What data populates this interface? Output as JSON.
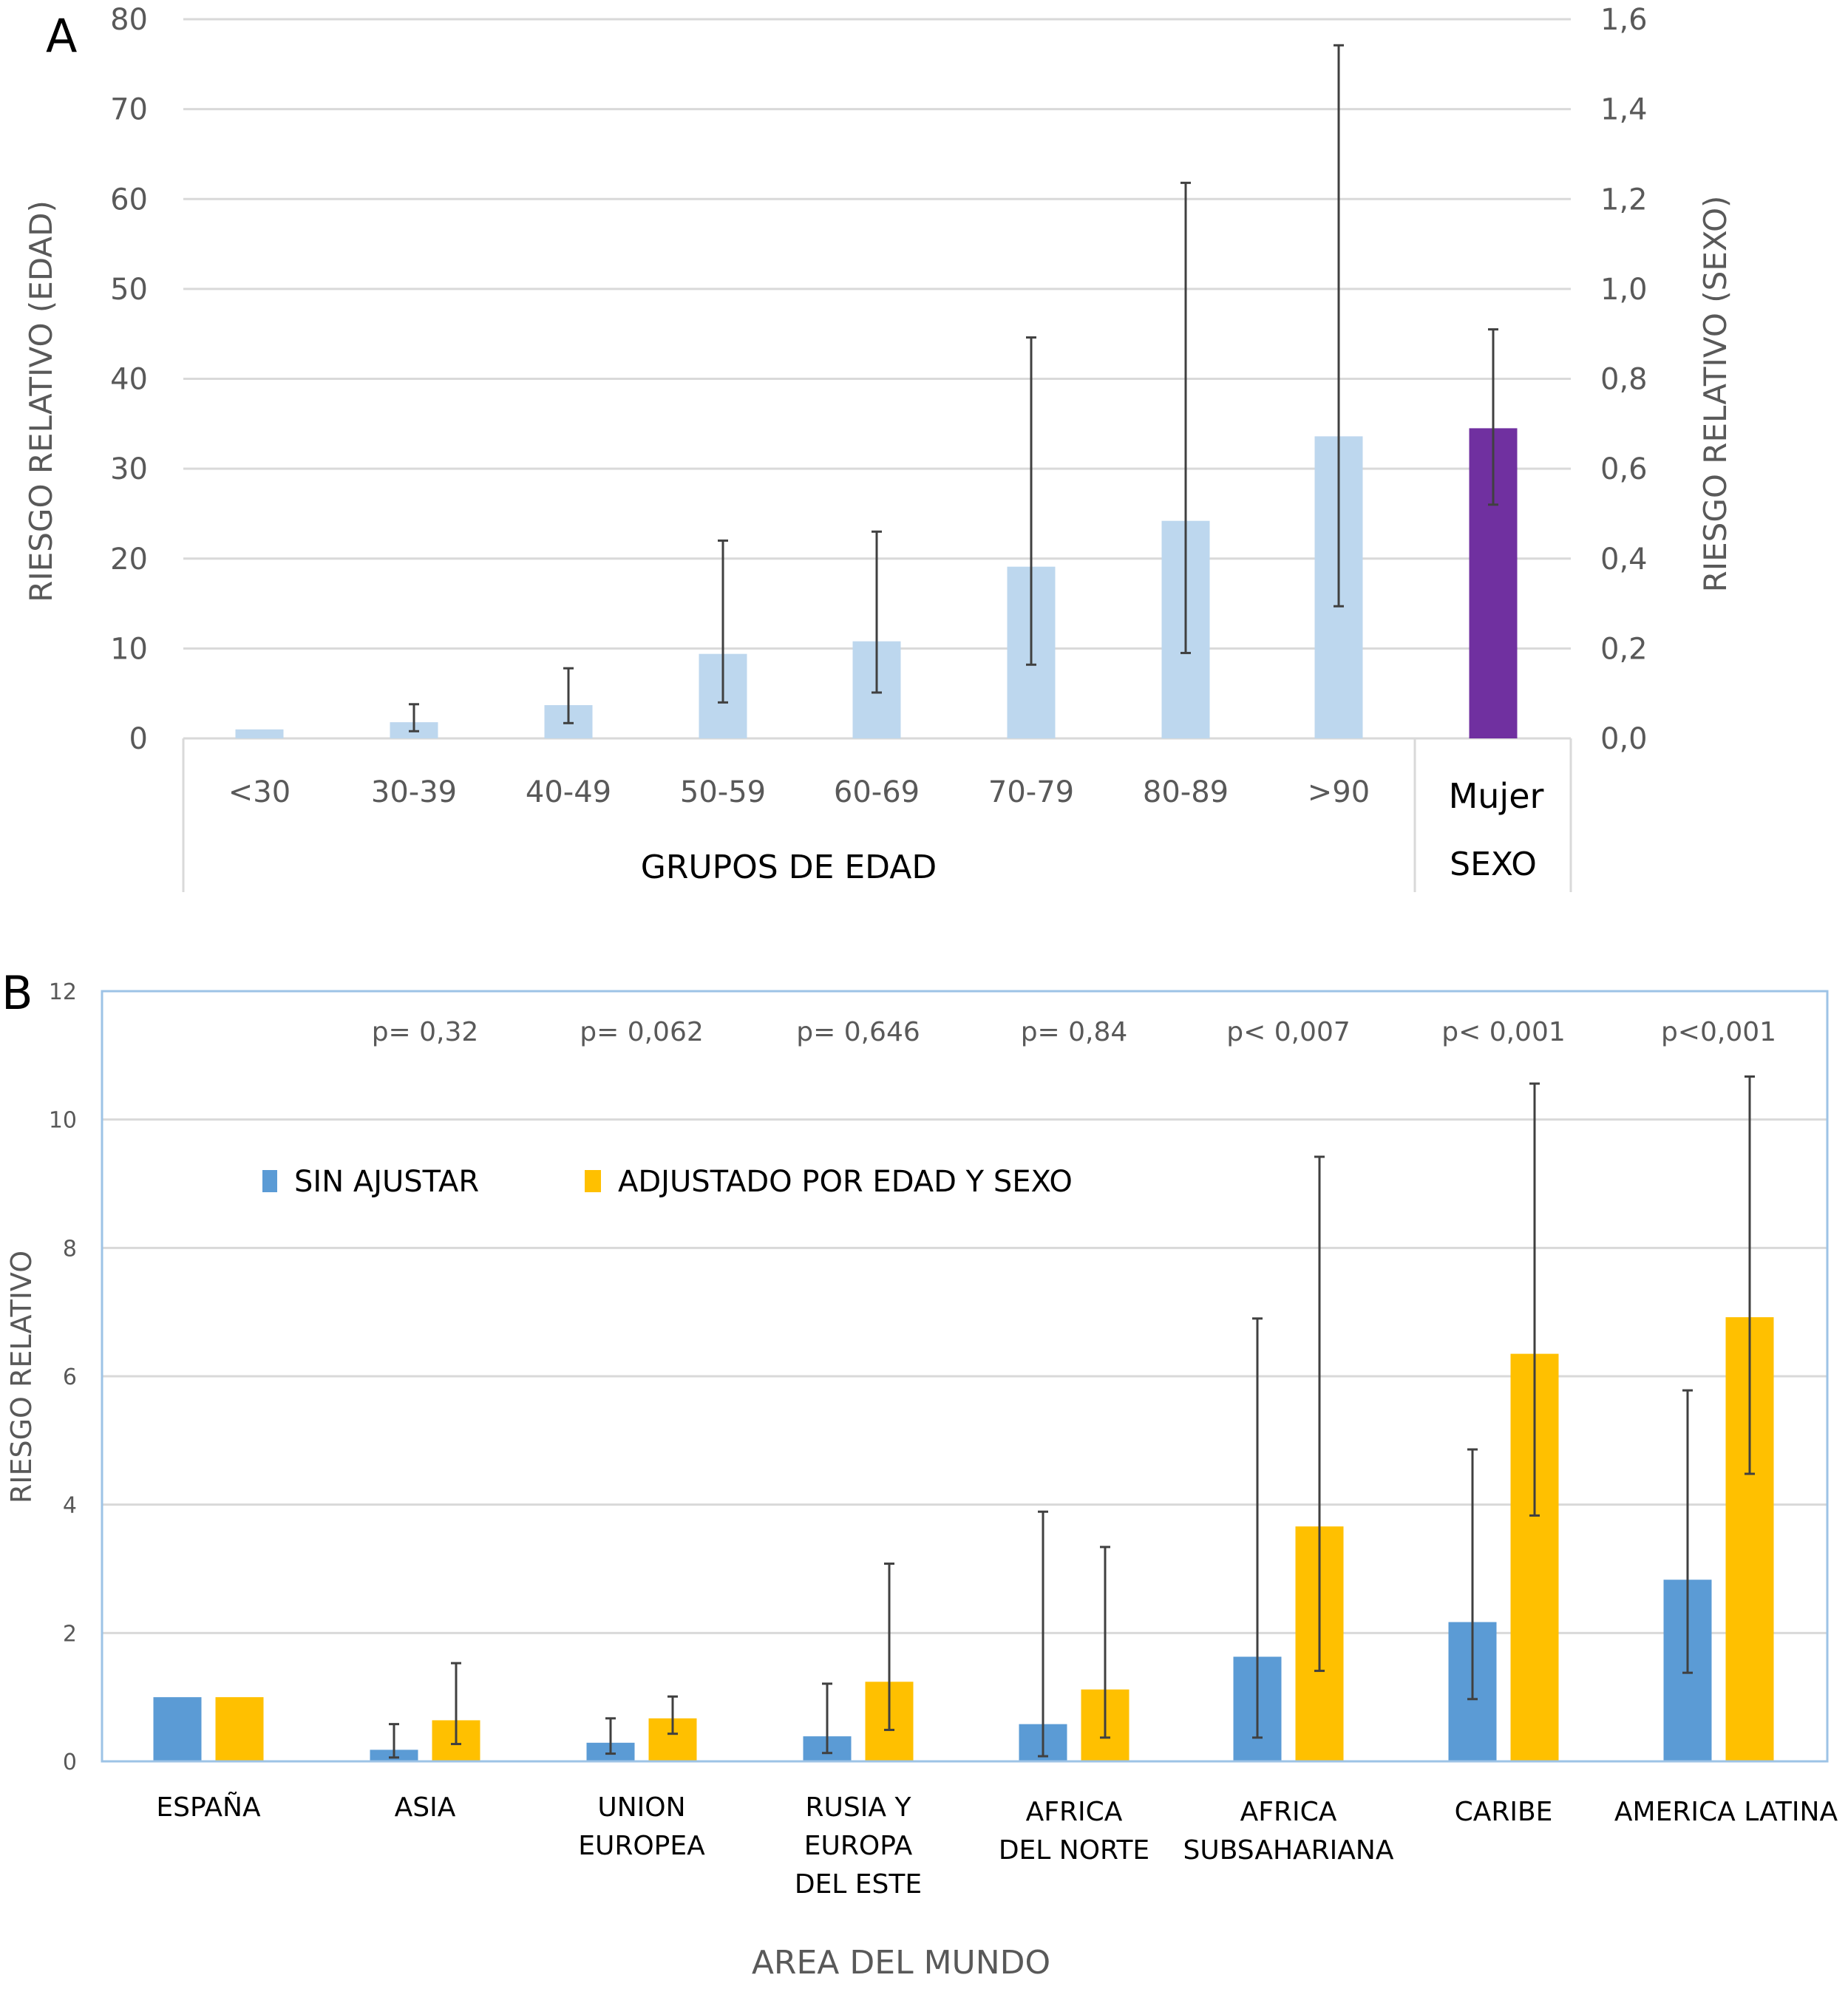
{
  "chart_data": [
    {
      "panel": "A",
      "type": "bar",
      "title": "",
      "xlabel": "GRUPOS DE EDAD",
      "ylabel": "RIESGO RELATIVO (EDAD)",
      "y2label": "RIESGO RELATIVO (SEXO)",
      "ylim": [
        0,
        80
      ],
      "y2lim": [
        0,
        1.6
      ],
      "yticks": [
        "0",
        "10",
        "20",
        "30",
        "40",
        "50",
        "60",
        "70",
        "80"
      ],
      "y2ticks": [
        "0,0",
        "0,2",
        "0,4",
        "0,6",
        "0,8",
        "1,0",
        "1,2",
        "1,4",
        "1,6"
      ],
      "grid": true,
      "categories": [
        "<30",
        "30-39",
        "40-49",
        "50-59",
        "60-69",
        "70-79",
        "80-89",
        ">90"
      ],
      "series": [
        {
          "name": "Edad",
          "axis": "left",
          "color": "#bdd7ee",
          "values": [
            1.0,
            1.8,
            3.7,
            9.4,
            10.8,
            19.1,
            24.2,
            33.6
          ],
          "err_low": [
            null,
            0.8,
            1.7,
            4.0,
            5.1,
            8.2,
            9.5,
            14.7
          ],
          "err_high": [
            null,
            3.8,
            7.8,
            22.0,
            23.0,
            44.6,
            61.8,
            77.1
          ]
        }
      ],
      "secondary_group": {
        "label": "SEXO",
        "categories": [
          "Mujer"
        ],
        "series": [
          {
            "name": "Sexo",
            "axis": "right",
            "color": "#7030a0",
            "values": [
              0.69
            ],
            "err_low": [
              0.52
            ],
            "err_high": [
              0.91
            ]
          }
        ]
      }
    },
    {
      "panel": "B",
      "type": "bar",
      "title": "",
      "xlabel": "AREA DEL MUNDO",
      "ylabel": "RIESGO RELATIVO",
      "ylim": [
        0,
        12
      ],
      "yticks": [
        "0",
        "2",
        "4",
        "6",
        "8",
        "10",
        "12"
      ],
      "grid": true,
      "legend_position": "top-left",
      "categories": [
        [
          "ESPAÑA"
        ],
        [
          "ASIA"
        ],
        [
          "UNION",
          "EUROPEA"
        ],
        [
          "RUSIA Y",
          "EUROPA",
          "DEL ESTE"
        ],
        [
          "AFRICA",
          "DEL NORTE"
        ],
        [
          "AFRICA",
          "SUBSAHARIANA"
        ],
        [
          "CARIBE"
        ],
        [
          "AMERICA LATINA"
        ]
      ],
      "p_values": [
        "",
        "p= 0,32",
        "p= 0,062",
        "p= 0,646",
        "p= 0,84",
        "p< 0,007",
        "p< 0,001",
        "p<0,001"
      ],
      "series": [
        {
          "name": "SIN AJUSTAR",
          "color": "#5b9bd5",
          "values": [
            1.0,
            0.18,
            0.29,
            0.39,
            0.58,
            1.63,
            2.17,
            2.83
          ],
          "err_low": [
            null,
            0.06,
            0.12,
            0.13,
            0.08,
            0.37,
            0.97,
            1.38
          ],
          "err_high": [
            null,
            0.58,
            0.67,
            1.21,
            3.89,
            6.9,
            4.86,
            5.78
          ]
        },
        {
          "name": "ADJUSTADO POR EDAD Y SEXO",
          "color": "#ffc000",
          "values": [
            1.0,
            0.64,
            0.67,
            1.24,
            1.12,
            3.66,
            6.35,
            6.92
          ],
          "err_low": [
            null,
            0.27,
            0.43,
            0.49,
            0.37,
            1.41,
            3.83,
            4.48
          ],
          "err_high": [
            null,
            1.53,
            1.01,
            3.08,
            3.34,
            9.42,
            10.56,
            10.67
          ]
        }
      ]
    }
  ],
  "panels": {
    "a_letter": "A",
    "b_letter": "B"
  }
}
